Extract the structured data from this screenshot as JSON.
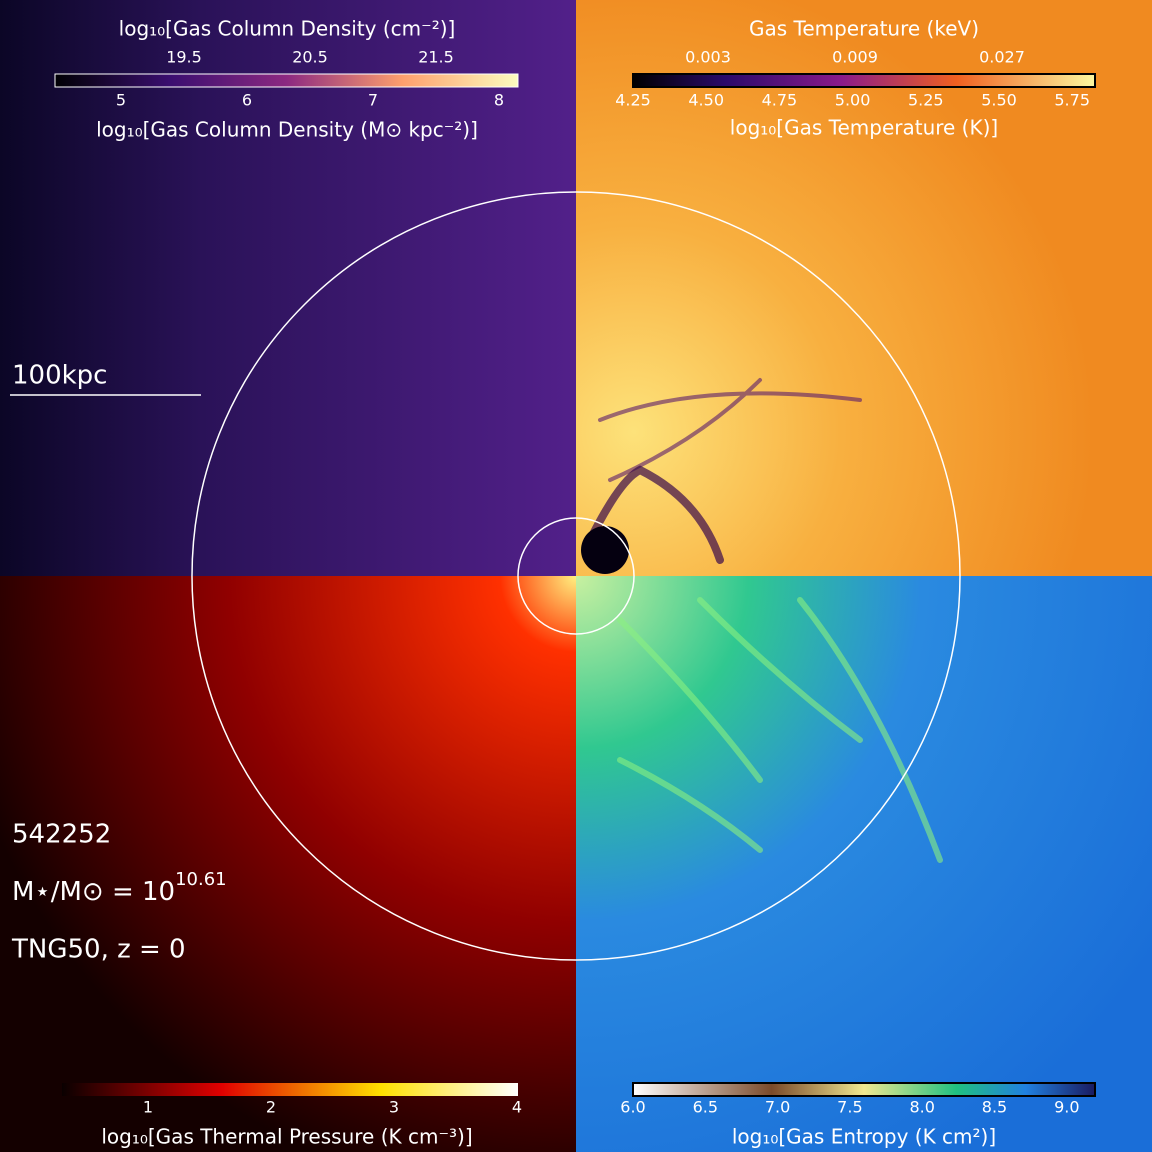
{
  "panels": {
    "column_density": {
      "label_top": "log₁₀[Gas Column Density (cm⁻²)]",
      "ticks_top": [
        "19.5",
        "20.5",
        "21.5"
      ],
      "ticks_bottom": [
        "5",
        "6",
        "7",
        "8"
      ],
      "label_bottom": "log₁₀[Gas Column Density (M⊙ kpc⁻²)]"
    },
    "temperature": {
      "label_top": "Gas Temperature (keV)",
      "ticks_top": [
        "0.003",
        "0.009",
        "0.027"
      ],
      "ticks_bottom": [
        "4.25",
        "4.50",
        "4.75",
        "5.00",
        "5.25",
        "5.50",
        "5.75"
      ],
      "label_bottom": "log₁₀[Gas Temperature (K)]"
    },
    "pressure": {
      "ticks_bottom": [
        "1",
        "2",
        "3",
        "4"
      ],
      "label_bottom": "log₁₀[Gas Thermal Pressure (K cm⁻³)]"
    },
    "entropy": {
      "ticks_bottom": [
        "6.0",
        "6.5",
        "7.0",
        "7.5",
        "8.0",
        "8.5",
        "9.0"
      ],
      "label_bottom": "log₁₀[Gas Entropy (K cm²)]"
    }
  },
  "scale_bar": "100kpc",
  "info": {
    "id": "542252",
    "mass": {
      "text": "M⋆/M⊙ = 10",
      "exponent": "10.61"
    },
    "sim": "TNG50, z = 0"
  }
}
